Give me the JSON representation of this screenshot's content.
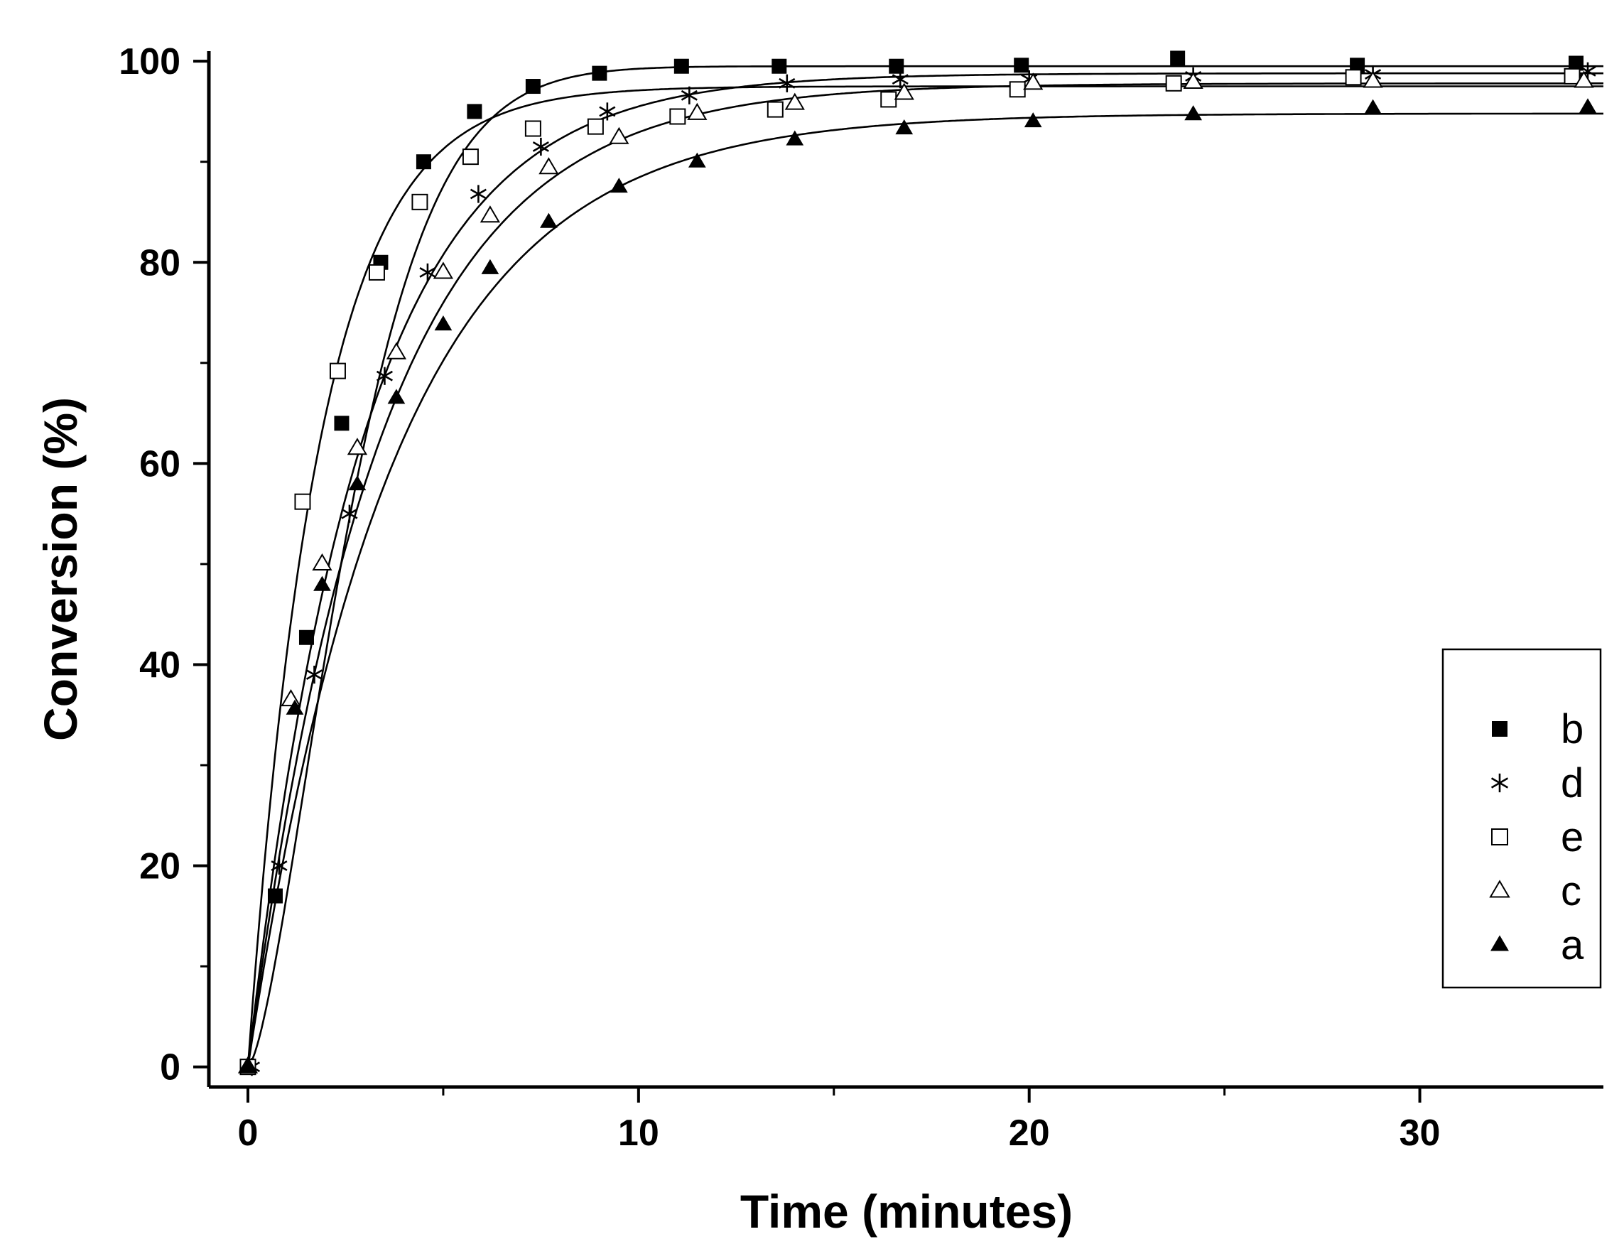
{
  "chart_data": {
    "type": "scatter",
    "xlabel": "Time (minutes)",
    "ylabel": "Conversion (%)",
    "xlim": [
      -1,
      34.7
    ],
    "ylim": [
      -2,
      101
    ],
    "xticks": [
      0,
      10,
      20,
      30
    ],
    "xtick_labels": [
      "0",
      "10",
      "20",
      "30"
    ],
    "yticks": [
      0,
      20,
      40,
      60,
      80,
      100
    ],
    "ytick_labels": [
      "0",
      "20",
      "40",
      "60",
      "80",
      "100"
    ],
    "grid": false,
    "legend_position": "right",
    "legend_order": [
      "b",
      "d",
      "e",
      "c",
      "a"
    ],
    "fitted_curves": true,
    "series": [
      {
        "name": "b",
        "marker": "filled-square",
        "fit": {
          "plateau": 99.5,
          "k": 0.33,
          "power": 1.5
        },
        "x": [
          0,
          0.7,
          1.5,
          2.4,
          3.4,
          4.5,
          5.8,
          7.3,
          9.0,
          11.1,
          13.6,
          16.6,
          19.8,
          23.8,
          28.4,
          34.0
        ],
        "y": [
          0,
          17,
          42.7,
          64,
          80,
          90,
          95,
          97.5,
          98.8,
          99.5,
          99.5,
          99.5,
          99.6,
          100.3,
          99.6,
          99.8
        ]
      },
      {
        "name": "d",
        "marker": "asterisk",
        "fit": {
          "plateau": 98.8,
          "k": 0.34,
          "power": 1.0
        },
        "x": [
          0.1,
          0.8,
          1.7,
          2.6,
          3.5,
          4.6,
          5.9,
          7.5,
          9.2,
          11.3,
          13.8,
          16.7,
          20.0,
          24.2,
          28.8,
          34.3
        ],
        "y": [
          0,
          20,
          39,
          55,
          68.7,
          79,
          86.8,
          91.5,
          95,
          96.6,
          97.8,
          98.2,
          98.2,
          98.5,
          98.7,
          99.0
        ]
      },
      {
        "name": "e",
        "marker": "open-square",
        "fit": {
          "plateau": 97.5,
          "k": 0.55,
          "power": 1.0
        },
        "x": [
          0,
          1.4,
          2.3,
          3.3,
          4.4,
          5.7,
          7.3,
          8.9,
          11.0,
          13.5,
          16.4,
          19.7,
          23.7,
          28.3,
          33.9
        ],
        "y": [
          0,
          56.2,
          69.2,
          79,
          86,
          90.5,
          93.3,
          93.5,
          94.5,
          95.2,
          96.2,
          97.2,
          97.8,
          98.4,
          98.5
        ]
      },
      {
        "name": "c",
        "marker": "open-triangle",
        "fit": {
          "plateau": 97.8,
          "k": 0.3,
          "power": 1.0
        },
        "x": [
          0,
          1.1,
          1.9,
          2.8,
          3.8,
          5.0,
          6.2,
          7.7,
          9.5,
          11.5,
          14.0,
          16.8,
          20.1,
          24.2,
          28.8,
          34.2
        ],
        "y": [
          0,
          36.5,
          50,
          61.5,
          71,
          79,
          84.6,
          89.4,
          92.4,
          94.8,
          95.8,
          96.8,
          97.8,
          97.9,
          98.0,
          98.0
        ]
      },
      {
        "name": "a",
        "marker": "filled-triangle",
        "fit": {
          "plateau": 94.8,
          "k": 0.27,
          "power": 1.0
        },
        "x": [
          0,
          1.2,
          1.9,
          2.8,
          3.8,
          5.0,
          6.2,
          7.7,
          9.5,
          11.5,
          14.0,
          16.8,
          20.1,
          24.2,
          28.8,
          34.3
        ],
        "y": [
          0,
          35.6,
          47.9,
          57.9,
          66.5,
          73.8,
          79.4,
          84,
          87.5,
          90,
          92.2,
          93.3,
          94,
          94.7,
          95.3,
          95.4
        ]
      }
    ]
  }
}
